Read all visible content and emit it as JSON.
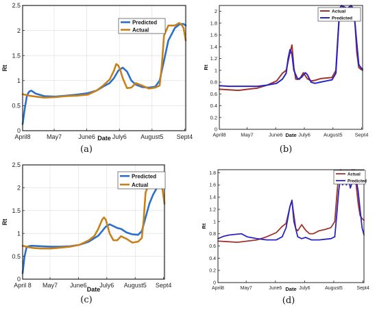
{
  "chart_data": [
    {
      "id": "a",
      "panel_label": "(a)",
      "type": "line",
      "xlabel": "Date",
      "ylabel": "Rt",
      "xlim": [
        0,
        150
      ],
      "ylim": [
        0,
        2.5
      ],
      "xticks": [
        {
          "v": 0,
          "label": "April8"
        },
        {
          "v": 29,
          "label": "May7"
        },
        {
          "v": 59,
          "label": "June6"
        },
        {
          "v": 89,
          "label": "July6"
        },
        {
          "v": 119,
          "label": "August5"
        },
        {
          "v": 149,
          "label": "Sept4"
        }
      ],
      "yticks": [
        {
          "v": 0,
          "label": "0"
        },
        {
          "v": 0.5,
          "label": "0.5"
        },
        {
          "v": 1,
          "label": "1"
        },
        {
          "v": 1.5,
          "label": "1.5"
        },
        {
          "v": 2,
          "label": "2"
        },
        {
          "v": 2.5,
          "label": "2.5"
        }
      ],
      "grid": true,
      "legend": "top-right",
      "series": [
        {
          "name": "Predicted",
          "color": "#2a6fc9",
          "x": [
            0,
            2,
            4,
            6,
            8,
            12,
            20,
            30,
            40,
            50,
            60,
            68,
            74,
            80,
            84,
            88,
            92,
            96,
            100,
            104,
            110,
            116,
            122,
            126,
            130,
            134,
            140,
            144,
            146,
            148,
            150
          ],
          "y": [
            0.13,
            0.45,
            0.7,
            0.78,
            0.8,
            0.74,
            0.69,
            0.68,
            0.7,
            0.72,
            0.75,
            0.8,
            0.88,
            0.95,
            1.05,
            1.2,
            1.26,
            1.18,
            1.0,
            0.92,
            0.87,
            0.86,
            0.88,
            1.0,
            1.4,
            1.8,
            2.05,
            2.12,
            2.13,
            2.13,
            2.1
          ]
        },
        {
          "name": "Actual",
          "color": "#c8801b",
          "x": [
            0,
            6,
            12,
            20,
            30,
            40,
            50,
            60,
            68,
            74,
            80,
            84,
            86,
            88,
            90,
            92,
            96,
            100,
            104,
            110,
            116,
            122,
            126,
            128,
            130,
            134,
            140,
            144,
            146,
            148,
            150
          ],
          "y": [
            0.73,
            0.7,
            0.68,
            0.66,
            0.67,
            0.69,
            0.7,
            0.72,
            0.8,
            0.9,
            1.02,
            1.2,
            1.33,
            1.3,
            1.2,
            1.05,
            0.85,
            0.86,
            0.95,
            0.9,
            0.84,
            0.86,
            0.9,
            1.3,
            1.9,
            2.1,
            2.1,
            2.15,
            2.12,
            2.05,
            1.8
          ]
        }
      ]
    },
    {
      "id": "b",
      "panel_label": "(b)",
      "type": "line",
      "xlabel": "Date",
      "ylabel": "Rt",
      "xlim": [
        0,
        150
      ],
      "ylim": [
        0,
        2.1
      ],
      "xticks": [
        {
          "v": 0,
          "label": "April8"
        },
        {
          "v": 29,
          "label": "May7"
        },
        {
          "v": 59,
          "label": "June6"
        },
        {
          "v": 89,
          "label": "July6"
        },
        {
          "v": 119,
          "label": "August5"
        },
        {
          "v": 149,
          "label": "Sept4"
        }
      ],
      "yticks": [
        {
          "v": 0,
          "label": "0"
        },
        {
          "v": 0.2,
          "label": "0.2"
        },
        {
          "v": 0.4,
          "label": "0.4"
        },
        {
          "v": 0.6,
          "label": "0.6"
        },
        {
          "v": 0.8,
          "label": "0.8"
        },
        {
          "v": 1,
          "label": "1"
        },
        {
          "v": 1.2,
          "label": "1.2"
        },
        {
          "v": 1.4,
          "label": "1.4"
        },
        {
          "v": 1.6,
          "label": "1.6"
        },
        {
          "v": 1.8,
          "label": "1.8"
        },
        {
          "v": 2,
          "label": "2"
        }
      ],
      "grid": false,
      "legend": "top-right",
      "series": [
        {
          "name": "Actual",
          "color": "#a0322a",
          "x": [
            0,
            10,
            20,
            30,
            40,
            50,
            60,
            66,
            70,
            74,
            76,
            78,
            80,
            84,
            88,
            92,
            96,
            100,
            106,
            112,
            118,
            122,
            124,
            126,
            128,
            130,
            134,
            138,
            140,
            142,
            144,
            146,
            148,
            150
          ],
          "y": [
            0.68,
            0.67,
            0.66,
            0.68,
            0.7,
            0.75,
            0.82,
            0.95,
            1.0,
            1.3,
            1.43,
            1.05,
            0.85,
            0.85,
            0.96,
            0.86,
            0.82,
            0.83,
            0.86,
            0.87,
            0.88,
            1.0,
            1.55,
            2.05,
            2.1,
            2.05,
            1.95,
            2.1,
            2.0,
            1.8,
            1.3,
            1.05,
            1.02,
            1.0
          ]
        },
        {
          "name": "Predicted",
          "color": "#2a23c4",
          "x": [
            0,
            10,
            20,
            30,
            40,
            50,
            60,
            66,
            70,
            72,
            74,
            76,
            78,
            82,
            86,
            90,
            92,
            96,
            100,
            106,
            112,
            118,
            122,
            124,
            126,
            128,
            130,
            134,
            138,
            140,
            142,
            144,
            146,
            148,
            150
          ],
          "y": [
            0.74,
            0.73,
            0.73,
            0.73,
            0.73,
            0.75,
            0.78,
            0.85,
            0.95,
            1.2,
            1.35,
            1.28,
            1.0,
            0.85,
            0.88,
            0.96,
            0.93,
            0.8,
            0.78,
            0.8,
            0.82,
            0.84,
            0.95,
            1.5,
            2.05,
            2.1,
            2.08,
            2.05,
            2.1,
            2.05,
            1.8,
            1.45,
            1.1,
            1.05,
            1.02
          ]
        }
      ]
    },
    {
      "id": "c",
      "panel_label": "(c)",
      "type": "line",
      "xlabel": "Date",
      "ylabel": "Rt",
      "xlim": [
        0,
        150
      ],
      "ylim": [
        0,
        2.5
      ],
      "xticks": [
        {
          "v": 0,
          "label": "April 8"
        },
        {
          "v": 29,
          "label": "May7"
        },
        {
          "v": 59,
          "label": "June6"
        },
        {
          "v": 89,
          "label": "July6"
        },
        {
          "v": 119,
          "label": "August5"
        },
        {
          "v": 149,
          "label": "Sept4"
        }
      ],
      "yticks": [
        {
          "v": 0,
          "label": "0"
        },
        {
          "v": 0.5,
          "label": "0.5"
        },
        {
          "v": 1,
          "label": "1"
        },
        {
          "v": 1.5,
          "label": "1.5"
        },
        {
          "v": 2,
          "label": "2"
        },
        {
          "v": 2.5,
          "label": "2.5"
        }
      ],
      "grid": true,
      "legend": "top-right",
      "series": [
        {
          "name": "Predicted",
          "color": "#2a6fc9",
          "x": [
            0,
            2,
            4,
            6,
            10,
            20,
            30,
            40,
            50,
            60,
            70,
            76,
            80,
            84,
            88,
            92,
            96,
            100,
            104,
            110,
            116,
            122,
            126,
            130,
            134,
            138,
            142,
            146,
            148,
            150
          ],
          "y": [
            0.13,
            0.5,
            0.68,
            0.72,
            0.73,
            0.72,
            0.71,
            0.71,
            0.72,
            0.75,
            0.82,
            0.9,
            0.95,
            1.05,
            1.15,
            1.2,
            1.16,
            1.12,
            1.1,
            1.02,
            0.98,
            0.97,
            1.05,
            1.35,
            1.65,
            1.85,
            2.0,
            2.07,
            2.08,
            2.08
          ]
        },
        {
          "name": "Actual",
          "color": "#c8801b",
          "x": [
            0,
            6,
            12,
            20,
            30,
            40,
            50,
            60,
            70,
            76,
            80,
            84,
            86,
            88,
            90,
            92,
            96,
            100,
            104,
            110,
            116,
            122,
            126,
            128,
            130,
            134,
            140,
            144,
            146,
            148,
            150
          ],
          "y": [
            0.73,
            0.7,
            0.68,
            0.67,
            0.67,
            0.69,
            0.71,
            0.75,
            0.85,
            0.95,
            1.1,
            1.3,
            1.35,
            1.3,
            1.15,
            1.0,
            0.85,
            0.85,
            0.94,
            0.88,
            0.8,
            0.82,
            0.9,
            1.3,
            1.9,
            2.1,
            2.1,
            2.15,
            2.08,
            1.95,
            1.65
          ]
        }
      ]
    },
    {
      "id": "d",
      "panel_label": "(d)",
      "type": "line",
      "xlabel": "Date",
      "ylabel": "Rt",
      "xlim": [
        0,
        150
      ],
      "ylim": [
        0,
        1.85
      ],
      "xticks": [
        {
          "v": 0,
          "label": "April8"
        },
        {
          "v": 29,
          "label": "May7"
        },
        {
          "v": 59,
          "label": "June6"
        },
        {
          "v": 89,
          "label": "July6"
        },
        {
          "v": 119,
          "label": "August5"
        },
        {
          "v": 149,
          "label": "Sept4"
        }
      ],
      "yticks": [
        {
          "v": 0,
          "label": "0"
        },
        {
          "v": 0.2,
          "label": "0.2"
        },
        {
          "v": 0.4,
          "label": "0.4"
        },
        {
          "v": 0.6,
          "label": "0.6"
        },
        {
          "v": 0.8,
          "label": "0.8"
        },
        {
          "v": 1,
          "label": "1"
        },
        {
          "v": 1.2,
          "label": "1.2"
        },
        {
          "v": 1.4,
          "label": "1.4"
        },
        {
          "v": 1.6,
          "label": "1.6"
        },
        {
          "v": 1.8,
          "label": "1.8"
        }
      ],
      "grid": false,
      "legend": "top-right",
      "series": [
        {
          "name": "Actual",
          "color": "#a0322a",
          "x": [
            0,
            10,
            20,
            30,
            40,
            50,
            60,
            66,
            70,
            74,
            76,
            78,
            80,
            82,
            86,
            90,
            94,
            98,
            104,
            110,
            116,
            120,
            122,
            124,
            126,
            128,
            130,
            134,
            138,
            140,
            142,
            144,
            146,
            148,
            150
          ],
          "y": [
            0.68,
            0.67,
            0.66,
            0.68,
            0.7,
            0.75,
            0.82,
            0.92,
            0.97,
            1.25,
            1.34,
            1.1,
            0.88,
            0.85,
            0.95,
            0.86,
            0.8,
            0.8,
            0.85,
            0.87,
            0.9,
            1.0,
            1.4,
            1.8,
            1.85,
            1.8,
            1.75,
            1.7,
            1.85,
            1.75,
            1.6,
            1.3,
            1.1,
            1.05,
            1.02
          ]
        },
        {
          "name": "Predicted",
          "color": "#2a23c4",
          "x": [
            0,
            6,
            12,
            18,
            24,
            30,
            40,
            50,
            60,
            66,
            70,
            74,
            76,
            78,
            82,
            86,
            90,
            96,
            104,
            110,
            116,
            120,
            122,
            124,
            126,
            128,
            130,
            132,
            134,
            136,
            138,
            140,
            142,
            144,
            146,
            148,
            150
          ],
          "y": [
            0.72,
            0.76,
            0.78,
            0.79,
            0.8,
            0.75,
            0.72,
            0.7,
            0.7,
            0.75,
            0.9,
            1.25,
            1.35,
            1.0,
            0.75,
            0.72,
            0.74,
            0.7,
            0.7,
            0.71,
            0.72,
            0.75,
            1.1,
            1.5,
            1.75,
            1.6,
            1.7,
            1.6,
            1.72,
            1.55,
            1.65,
            1.85,
            1.7,
            1.5,
            1.2,
            0.9,
            0.78
          ]
        }
      ]
    }
  ]
}
